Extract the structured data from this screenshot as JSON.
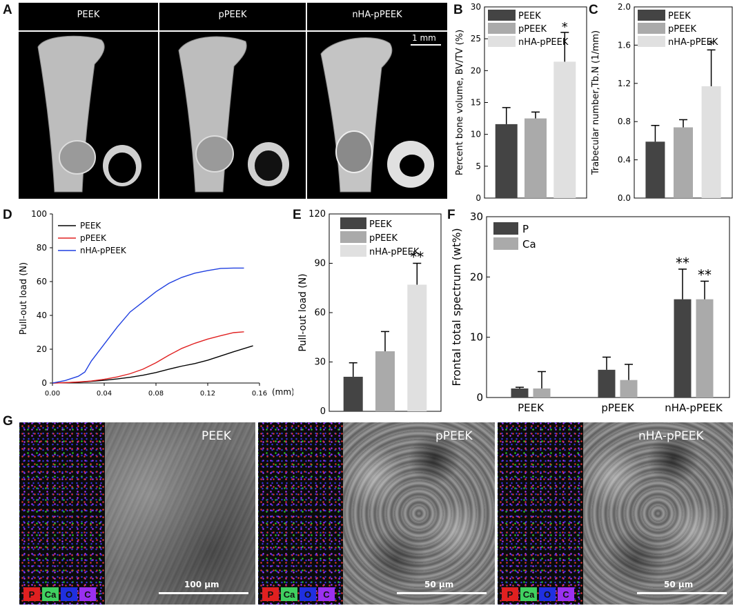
{
  "panels": {
    "A": "A",
    "B": "B",
    "C": "C",
    "D": "D",
    "E": "E",
    "F": "F",
    "G": "G"
  },
  "panel_a": {
    "labels": [
      "PEEK",
      "pPEEK",
      "nHA-pPEEK"
    ],
    "scale": "1 mm"
  },
  "panel_g": {
    "labels": [
      "PEEK",
      "pPEEK",
      "nHA-pPEEK"
    ],
    "scales": [
      "100 μm",
      "50 μm",
      "50 μm"
    ],
    "elements": [
      "P",
      "Ca",
      "O",
      "C"
    ],
    "element_colors": [
      "#e02020",
      "#40d060",
      "#2030e0",
      "#9a30f0"
    ]
  },
  "chart_data": [
    {
      "panel": "B",
      "type": "bar",
      "categories": [
        "PEEK",
        "pPEEK",
        "nHA-pPEEK"
      ],
      "values": [
        11.6,
        12.5,
        21.4
      ],
      "errors": [
        2.6,
        1.0,
        4.6
      ],
      "significance": [
        "",
        "",
        "*"
      ],
      "ylabel": "Percent bone volume, BV/TV (%)",
      "ylim": [
        0,
        30
      ],
      "yticks": [
        "0",
        "5",
        "10",
        "15",
        "20",
        "25",
        "30"
      ],
      "legend": [
        "PEEK",
        "pPEEK",
        "nHA-pPEEK"
      ],
      "colors": [
        "#444444",
        "#aaaaaa",
        "#e0e0e0"
      ]
    },
    {
      "panel": "C",
      "type": "bar",
      "categories": [
        "PEEK",
        "pPEEK",
        "nHA-pPEEK"
      ],
      "values": [
        0.59,
        0.74,
        1.17
      ],
      "errors": [
        0.17,
        0.08,
        0.38
      ],
      "significance": [
        "",
        "",
        "*"
      ],
      "ylabel": "Trabecular number,Tb.N (1/mm)",
      "ylim": [
        0,
        2.0
      ],
      "yticks": [
        "0.0",
        "0.4",
        "0.8",
        "1.2",
        "1.6",
        "2.0"
      ],
      "legend": [
        "PEEK",
        "pPEEK",
        "nHA-pPEEK"
      ],
      "colors": [
        "#444444",
        "#aaaaaa",
        "#e0e0e0"
      ]
    },
    {
      "panel": "D",
      "type": "line",
      "xlabel": "(mm)",
      "ylabel": "Pull-out load (N)",
      "xlim": [
        0,
        0.16
      ],
      "ylim": [
        0,
        100
      ],
      "xticks": [
        "0.00",
        "0.04",
        "0.08",
        "0.12",
        "0.16"
      ],
      "yticks": [
        "0",
        "20",
        "40",
        "60",
        "80",
        "100"
      ],
      "legend": [
        "PEEK",
        "pPEEK",
        "nHA-pPEEK"
      ],
      "series": [
        {
          "name": "PEEK",
          "color": "#000000",
          "x": [
            0,
            0.01,
            0.02,
            0.03,
            0.04,
            0.05,
            0.06,
            0.07,
            0.08,
            0.09,
            0.1,
            0.11,
            0.12,
            0.13,
            0.14,
            0.155
          ],
          "y": [
            0,
            0.2,
            0.5,
            1,
            1.6,
            2.4,
            3.4,
            4.6,
            6.2,
            8.2,
            10,
            11.5,
            13.5,
            16,
            18.5,
            22
          ]
        },
        {
          "name": "pPEEK",
          "color": "#e02020",
          "x": [
            0,
            0.01,
            0.02,
            0.03,
            0.04,
            0.05,
            0.06,
            0.07,
            0.08,
            0.09,
            0.1,
            0.11,
            0.12,
            0.13,
            0.14,
            0.148
          ],
          "y": [
            0,
            0.2,
            0.6,
            1.2,
            2.2,
            3.6,
            5.5,
            8.2,
            12,
            16.5,
            20.5,
            23.5,
            26,
            28,
            29.8,
            30.3
          ]
        },
        {
          "name": "nHA-pPEEK",
          "color": "#1f3fe0",
          "x": [
            0,
            0.01,
            0.02,
            0.025,
            0.03,
            0.04,
            0.05,
            0.06,
            0.07,
            0.08,
            0.09,
            0.1,
            0.11,
            0.12,
            0.13,
            0.14,
            0.148
          ],
          "y": [
            0,
            1.5,
            4,
            6.5,
            13,
            23,
            33,
            42,
            48,
            54,
            59,
            62.5,
            65,
            66.5,
            67.8,
            68,
            68
          ]
        }
      ]
    },
    {
      "panel": "E",
      "type": "bar",
      "categories": [
        "PEEK",
        "pPEEK",
        "nHA-pPEEK"
      ],
      "values": [
        21,
        36.5,
        77
      ],
      "errors": [
        8.5,
        12,
        13
      ],
      "significance": [
        "",
        "",
        "**"
      ],
      "ylabel": "Pull-out load (N)",
      "ylim": [
        0,
        120
      ],
      "yticks": [
        "0",
        "30",
        "60",
        "90",
        "120"
      ],
      "legend": [
        "PEEK",
        "pPEEK",
        "nHA-pPEEK"
      ],
      "colors": [
        "#444444",
        "#aaaaaa",
        "#e0e0e0"
      ]
    },
    {
      "panel": "F",
      "type": "bar",
      "categories": [
        "PEEK",
        "pPEEK",
        "nHA-pPEEK"
      ],
      "series": [
        {
          "name": "P",
          "values": [
            1.5,
            4.6,
            16.3
          ],
          "errors": [
            0.2,
            2.1,
            5.0
          ],
          "significance": [
            "",
            "",
            "**"
          ],
          "color": "#444444"
        },
        {
          "name": "Ca",
          "values": [
            1.5,
            2.9,
            16.3
          ],
          "errors": [
            2.8,
            2.6,
            3.0
          ],
          "significance": [
            "",
            "",
            "**"
          ],
          "color": "#aaaaaa"
        }
      ],
      "ylabel": "Frontal total spectrum (wt%)",
      "ylim": [
        0,
        30
      ],
      "yticks": [
        "0",
        "10",
        "20",
        "30"
      ],
      "legend": [
        "P",
        "Ca"
      ]
    }
  ]
}
